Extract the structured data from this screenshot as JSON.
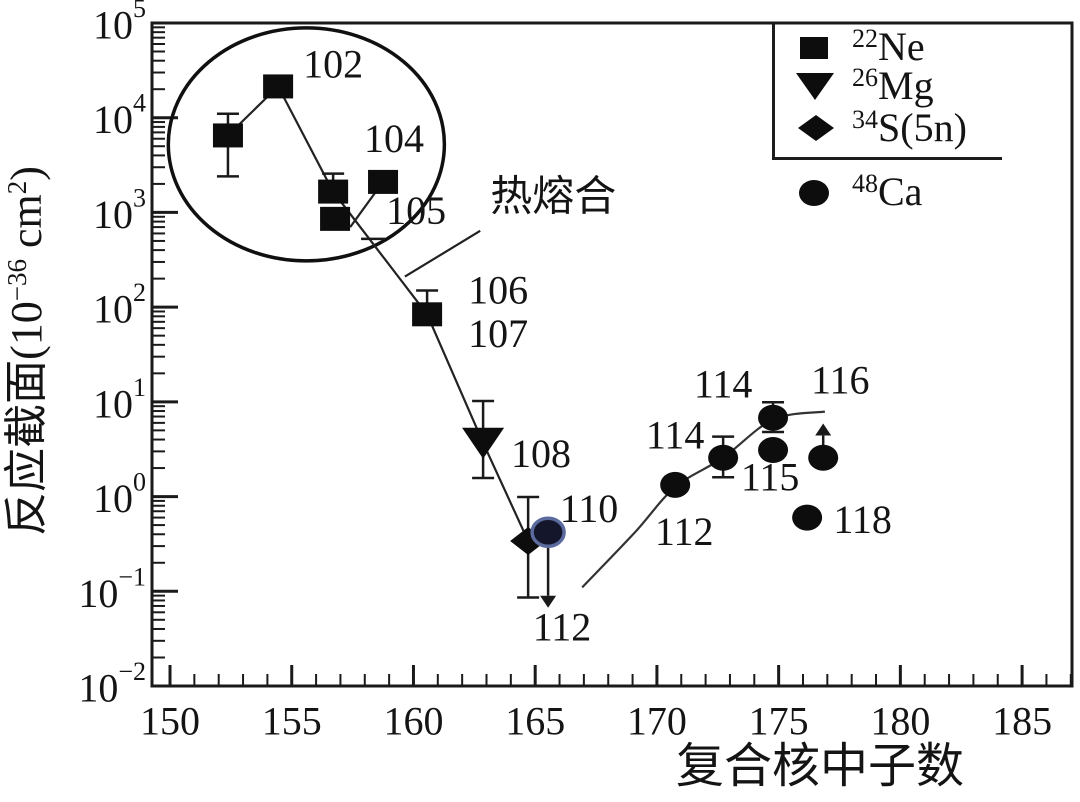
{
  "chart_data": {
    "type": "scatter",
    "title": "",
    "xlabel": "复合核中子数",
    "ylabel": "反应截面(10−36 cm2)",
    "ylabel_parts": {
      "base": "反应截面(10",
      "exp": "−36",
      "mid": " cm",
      "exp2": "2",
      "end": ")"
    },
    "x_range": [
      149.26,
      187.05
    ],
    "x_major_ticks": [
      150,
      155,
      160,
      165,
      170,
      175,
      180,
      185
    ],
    "x_minor_step": 1,
    "y_scale": "log",
    "y_exponent_range": [
      -2,
      5
    ],
    "y_tick_exponents": [
      5,
      4,
      3,
      2,
      1,
      0,
      -1,
      -2
    ],
    "grid": false,
    "legend_position": "top-right",
    "ink_color": "#1a1a1a",
    "marker_color": "#0d0d0d",
    "ring_color": "#5b6b9e",
    "series": [
      {
        "name": "22Ne",
        "marker": "square",
        "points": [
          {
            "x": 152.38,
            "y": 6500,
            "err_lo": 2400,
            "err_hi": 11000
          },
          {
            "x": 154.44,
            "y": 21400
          },
          {
            "x": 156.7,
            "y": 1660,
            "err_hi": 2570
          },
          {
            "x": 156.78,
            "y": 855
          },
          {
            "x": 158.75,
            "y": 2100
          },
          {
            "x": 160.56,
            "y": 84,
            "err_hi": 150
          }
        ]
      },
      {
        "name": "26Mg",
        "marker": "triangle-down",
        "points": [
          {
            "x": 162.86,
            "y": 3.7,
            "err_lo": 1.57,
            "err_hi": 10.2
          }
        ]
      },
      {
        "name": "34S(5n)",
        "marker": "diamond",
        "points": [
          {
            "x": 164.71,
            "y": 0.34,
            "err_lo": 0.086,
            "err_hi": 0.99
          }
        ]
      },
      {
        "name": "48Ca",
        "marker": "circle",
        "points": [
          {
            "x": 165.53,
            "y": 0.42,
            "arrow_down_to": 0.067,
            "ring": true
          },
          {
            "x": 170.75,
            "y": 1.33
          },
          {
            "x": 172.72,
            "y": 2.57,
            "err_lo": 1.6,
            "err_hi": 4.3
          },
          {
            "x": 174.77,
            "y": 6.8,
            "err_lo": 4.8,
            "err_hi": 9.9
          },
          {
            "x": 174.77,
            "y": 3.1
          },
          {
            "x": 176.83,
            "y": 2.57,
            "arrow_up_to": 5.9
          },
          {
            "x": 176.17,
            "y": 0.6
          }
        ]
      }
    ],
    "lines": [
      {
        "name": "hot-fusion-trend",
        "pts": [
          [
            152.38,
            6500
          ],
          [
            154.44,
            21400
          ],
          [
            156.7,
            1660
          ],
          [
            160.56,
            84
          ],
          [
            162.86,
            3.7
          ],
          [
            164.71,
            0.34
          ]
        ]
      },
      {
        "name": "branch-104",
        "pts": [
          [
            158.75,
            2100
          ],
          [
            157.4,
            700
          ]
        ]
      },
      {
        "name": "hot-fusion-pointer",
        "pts": [
          [
            162.74,
            640
          ],
          [
            159.65,
            210
          ]
        ]
      }
    ],
    "extra_caps": [
      {
        "x": 158.34,
        "y": 525
      }
    ],
    "curve": {
      "name": "ca-trend",
      "pts": [
        [
          166.93,
          0.11
        ],
        [
          169.1,
          0.42
        ],
        [
          170.75,
          1.26
        ],
        [
          172.72,
          2.57
        ],
        [
          174.77,
          6.5
        ],
        [
          176.9,
          7.9
        ]
      ]
    },
    "ellipse": {
      "cx": 155.6,
      "cy": 5230,
      "rx_units": 5.67,
      "ry_decades": 1.23
    },
    "point_labels": [
      {
        "text": "102",
        "x": 156.7,
        "y": 36800
      },
      {
        "text": "104",
        "x": 159.2,
        "y": 6050
      },
      {
        "text": "105",
        "x": 160.11,
        "y": 1050
      },
      {
        "text": "106",
        "x": 163.48,
        "y": 152
      },
      {
        "text": "107",
        "x": 163.48,
        "y": 53
      },
      {
        "text": "108",
        "x": 165.24,
        "y": 2.86
      },
      {
        "text": "110",
        "x": 167.21,
        "y": 0.75
      },
      {
        "text": "112",
        "x": 166.1,
        "y": 0.042
      },
      {
        "text": "112",
        "x": 171.12,
        "y": 0.43
      },
      {
        "text": "114",
        "x": 170.75,
        "y": 4.45
      },
      {
        "text": "114",
        "x": 172.72,
        "y": 15.4
      },
      {
        "text": "115",
        "x": 174.65,
        "y": 1.6
      },
      {
        "text": "116",
        "x": 177.53,
        "y": 17.0
      },
      {
        "text": "118",
        "x": 178.45,
        "y": 0.57
      },
      {
        "text": "热熔合",
        "x": 165.74,
        "y": 1440,
        "cjk": true
      }
    ],
    "legend": {
      "entries": [
        {
          "sup": "22",
          "label": "Ne"
        },
        {
          "sup": "26",
          "label": "Mg"
        },
        {
          "sup": "34",
          "label": "S(5n)"
        },
        {
          "sup": "48",
          "label": "Ca"
        }
      ]
    }
  }
}
